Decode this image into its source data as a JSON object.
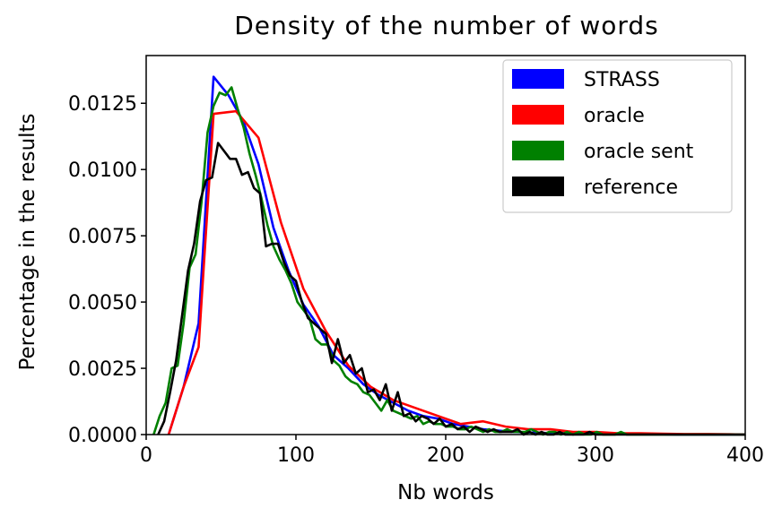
{
  "chart_data": {
    "type": "line",
    "title": "Density of the number of words",
    "xlabel": "Nb words",
    "ylabel": "Percentage in the results",
    "xlim": [
      0,
      400
    ],
    "ylim": [
      0,
      0.0143
    ],
    "xticks": [
      0,
      100,
      200,
      300,
      400
    ],
    "xtick_labels": [
      "0",
      "100",
      "200",
      "300",
      "400"
    ],
    "yticks": [
      0,
      0.0025,
      0.005,
      0.0075,
      0.01,
      0.0125
    ],
    "ytick_labels": [
      "0.0000",
      "0.0025",
      "0.0050",
      "0.0075",
      "0.0100",
      "0.0125"
    ],
    "grid": false,
    "legend_position": "top-right",
    "series": [
      {
        "name": "STRASS",
        "color": "#0000ff",
        "x": [
          15,
          25,
          35,
          45,
          55,
          65,
          75,
          85,
          95,
          105,
          115,
          125,
          135,
          145,
          155,
          165,
          175,
          185,
          195,
          205,
          215,
          225,
          235,
          245,
          255,
          265,
          275,
          285,
          295,
          305,
          315,
          325,
          335,
          345,
          355,
          365,
          375,
          385,
          395,
          400
        ],
        "y": [
          0.0,
          0.0018,
          0.0042,
          0.0135,
          0.0128,
          0.0118,
          0.0102,
          0.0078,
          0.0062,
          0.0049,
          0.0041,
          0.003,
          0.0025,
          0.0019,
          0.0015,
          0.0012,
          0.0009,
          0.0007,
          0.0006,
          0.0004,
          0.0003,
          0.0002,
          0.00015,
          0.0001,
          8e-05,
          6e-05,
          5e-05,
          4e-05,
          3e-05,
          2e-05,
          2e-05,
          1e-05,
          1e-05,
          1e-05,
          0.0,
          0.0,
          0.0,
          0.0,
          0.0,
          0.0
        ]
      },
      {
        "name": "oracle",
        "color": "#ff0000",
        "x": [
          15,
          25,
          35,
          45,
          60,
          75,
          90,
          105,
          120,
          135,
          150,
          165,
          180,
          195,
          210,
          225,
          240,
          255,
          270,
          285,
          300,
          315,
          330,
          345,
          360,
          375,
          390,
          400
        ],
        "y": [
          0.0,
          0.0018,
          0.0033,
          0.0121,
          0.0122,
          0.0112,
          0.008,
          0.0055,
          0.0039,
          0.0026,
          0.0018,
          0.0013,
          0.001,
          0.0007,
          0.0004,
          0.0005,
          0.0003,
          0.0002,
          0.0002,
          0.0001,
          0.0001,
          5e-05,
          5e-05,
          3e-05,
          2e-05,
          2e-05,
          1e-05,
          0.0
        ]
      },
      {
        "name": "oracle sent",
        "color": "#008000",
        "x": [
          5,
          9,
          13,
          17,
          21,
          25,
          29,
          33,
          37,
          41,
          45,
          49,
          53,
          57,
          61,
          65,
          69,
          73,
          77,
          81,
          85,
          89,
          93,
          97,
          101,
          105,
          109,
          113,
          117,
          121,
          125,
          129,
          133,
          137,
          141,
          145,
          149,
          153,
          157,
          161,
          165,
          169,
          173,
          177,
          181,
          185,
          189,
          193,
          197,
          201,
          205,
          209,
          213,
          217,
          221,
          225,
          229,
          233,
          237,
          241,
          245,
          249,
          253,
          257,
          261,
          265,
          269,
          273,
          277,
          281,
          285,
          289,
          293,
          297,
          301,
          305,
          309,
          313,
          317,
          321,
          325,
          329,
          333,
          337,
          341,
          345,
          349,
          353,
          357,
          361,
          365,
          369,
          373,
          377,
          381,
          385,
          389,
          393,
          397,
          400
        ],
        "y": [
          0.0,
          0.0007,
          0.0012,
          0.0025,
          0.0026,
          0.0042,
          0.0063,
          0.0068,
          0.0088,
          0.0114,
          0.0124,
          0.0129,
          0.0128,
          0.0131,
          0.0123,
          0.0116,
          0.0106,
          0.0098,
          0.0089,
          0.0079,
          0.0071,
          0.0066,
          0.0062,
          0.0057,
          0.005,
          0.0047,
          0.0044,
          0.0036,
          0.0034,
          0.0034,
          0.0028,
          0.0026,
          0.0022,
          0.002,
          0.0019,
          0.0016,
          0.0015,
          0.0012,
          0.0009,
          0.0013,
          0.0009,
          0.0008,
          0.0007,
          0.0006,
          0.0007,
          0.0004,
          0.0005,
          0.0004,
          0.0004,
          0.0003,
          0.0003,
          0.0002,
          0.0002,
          0.0003,
          0.0002,
          0.0001,
          0.0002,
          0.0001,
          0.0001,
          0.0002,
          0.0001,
          0.0001,
          0.0001,
          0.0002,
          0.0001,
          0.0,
          0.0001,
          0.0001,
          0.0,
          0.0001,
          0.0,
          0.0001,
          0.0,
          0.0,
          0.0001,
          0.0,
          0.0,
          0.0,
          0.0001,
          0.0,
          0.0,
          0.0,
          0.0,
          0.0,
          0.0,
          0.0,
          0.0,
          0.0,
          0.0,
          0.0,
          0.0,
          0.0,
          0.0,
          0.0,
          0.0,
          0.0,
          0.0,
          0.0,
          0.0,
          0.0
        ]
      },
      {
        "name": "reference",
        "color": "#000000",
        "x": [
          8,
          12,
          16,
          20,
          24,
          28,
          32,
          36,
          40,
          44,
          48,
          52,
          56,
          60,
          64,
          68,
          72,
          76,
          80,
          84,
          88,
          92,
          96,
          100,
          104,
          108,
          112,
          116,
          120,
          124,
          128,
          132,
          136,
          140,
          144,
          148,
          152,
          156,
          160,
          164,
          168,
          172,
          176,
          180,
          184,
          188,
          192,
          196,
          200,
          204,
          208,
          212,
          216,
          220,
          224,
          228,
          232,
          236,
          240,
          244,
          248,
          252,
          256,
          260,
          264,
          268,
          272,
          276,
          280,
          284,
          288,
          292,
          296,
          300,
          304,
          308,
          312,
          316,
          320,
          324,
          328,
          332,
          336,
          340,
          344,
          348,
          352,
          356,
          360,
          364,
          368,
          372,
          376,
          380,
          384,
          388,
          392,
          396,
          400
        ],
        "y": [
          0.0,
          0.0005,
          0.0016,
          0.0028,
          0.0045,
          0.0062,
          0.0072,
          0.0088,
          0.0096,
          0.0097,
          0.011,
          0.0107,
          0.0104,
          0.0104,
          0.0098,
          0.0099,
          0.0093,
          0.0091,
          0.0071,
          0.0072,
          0.0072,
          0.0065,
          0.006,
          0.0058,
          0.005,
          0.0044,
          0.0042,
          0.004,
          0.0038,
          0.0027,
          0.0036,
          0.0027,
          0.003,
          0.0023,
          0.0025,
          0.0016,
          0.0017,
          0.0013,
          0.0019,
          0.0009,
          0.0016,
          0.0007,
          0.0008,
          0.0005,
          0.0007,
          0.0006,
          0.0004,
          0.0006,
          0.0003,
          0.0004,
          0.0002,
          0.0003,
          0.0001,
          0.0003,
          0.0002,
          0.0001,
          0.0002,
          0.0001,
          0.0001,
          0.0001,
          0.0002,
          0.0,
          0.0001,
          0.0,
          0.0001,
          0.0,
          0.0,
          0.0001,
          0.0,
          0.0,
          0.0,
          0.0,
          0.0001,
          0.0,
          0.0,
          0.0,
          0.0,
          0.0,
          0.0,
          0.0,
          0.0,
          0.0,
          0.0,
          0.0,
          0.0,
          0.0,
          0.0,
          0.0,
          0.0,
          0.0,
          0.0,
          0.0,
          0.0,
          0.0,
          0.0,
          0.0,
          0.0,
          0.0,
          0.0
        ]
      }
    ]
  }
}
